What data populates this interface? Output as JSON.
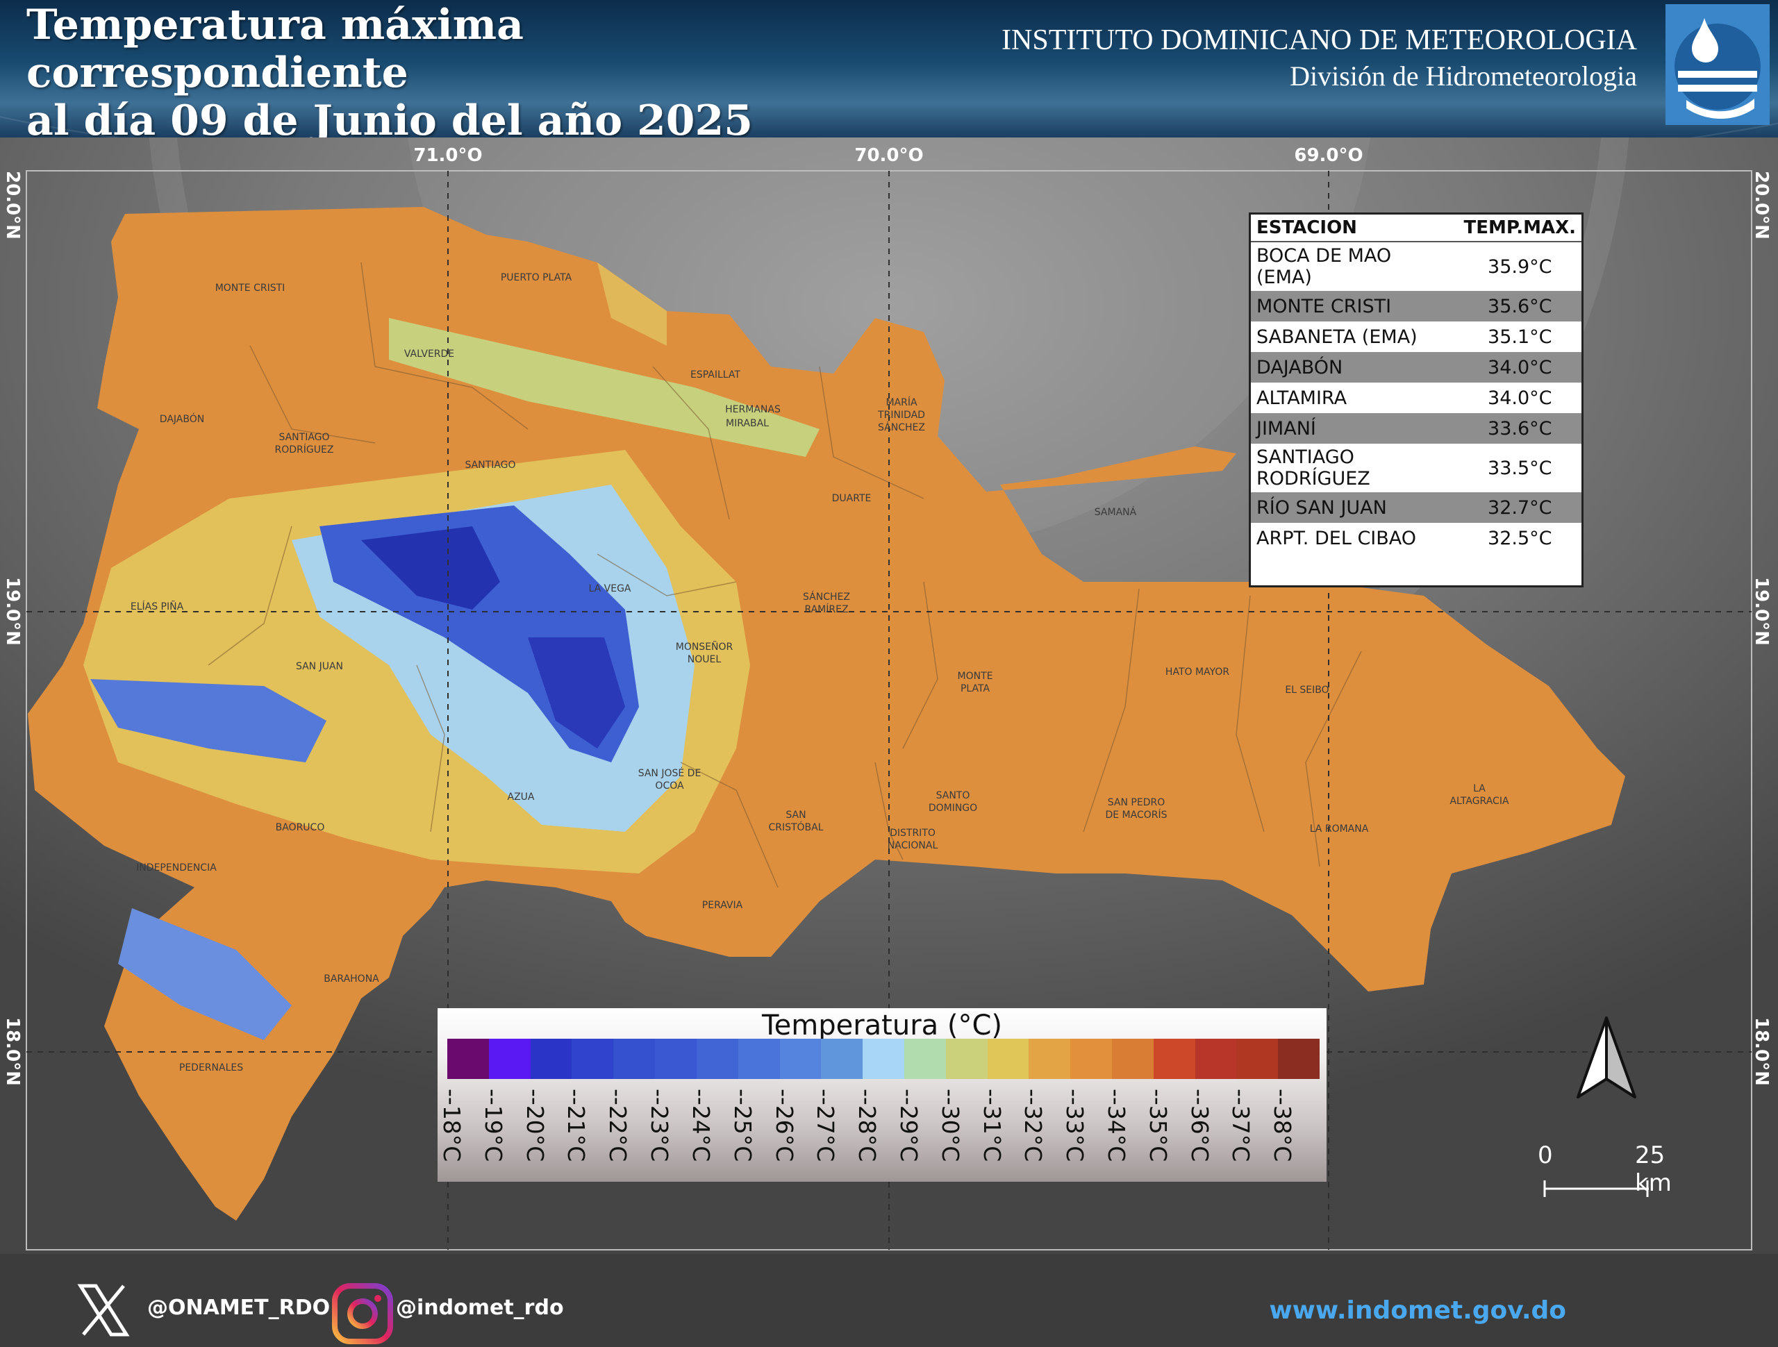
{
  "title": {
    "line1": "Temperatura máxima correspondiente",
    "line2": "al día 09 de Junio del año 2025"
  },
  "institute": {
    "name": "INSTITUTO DOMINICANO DE METEOROLOGIA",
    "division": "División de Hidrometeorologia"
  },
  "axes": {
    "lon_labels": [
      "71.0°O",
      "70.0°O",
      "69.0°O"
    ],
    "lat_labels": [
      "20.0°N",
      "19.0°N",
      "18.0°N"
    ]
  },
  "provinces": [
    "MONTE CRISTI",
    "PUERTO PLATA",
    "VALVERDE",
    "ESPAILLAT",
    "HERMANAS",
    "MIRABAL",
    "MARÍA",
    "TRINIDAD",
    "SÁNCHEZ",
    "DAJABÓN",
    "SANTIAGO",
    "RODRÍGUEZ",
    "SANTIAGO",
    "DUARTE",
    "SAMANÁ",
    "ELÍAS PIÑA",
    "LA VEGA",
    "SÁNCHEZ",
    "RAMÍREZ",
    "MONSEÑOR",
    "NOUEL",
    "SAN JUAN",
    "MONTE",
    "PLATA",
    "HATO MAYOR",
    "EL SEIBO",
    "SAN JOSÉ DE",
    "OCOA",
    "AZUA",
    "SANTO",
    "DOMINGO",
    "SAN PEDRO",
    "DE MACORÍS",
    "LA",
    "ALTAGRACIA",
    "BAORUCO",
    "SAN",
    "CRISTÓBAL",
    "DISTRITO",
    "NACIONAL",
    "LA ROMANA",
    "INDEPENDENCIA",
    "PERAVIA",
    "BARAHONA",
    "PEDERNALES"
  ],
  "stations": {
    "header": {
      "station": "ESTACION",
      "temp": "TEMP.MAX."
    },
    "rows": [
      {
        "name": "BOCA DE MAO (EMA)",
        "temp": "35.9°C"
      },
      {
        "name": "MONTE CRISTI",
        "temp": "35.6°C"
      },
      {
        "name": "SABANETA (EMA)",
        "temp": "35.1°C"
      },
      {
        "name": "DAJABÓN",
        "temp": "34.0°C"
      },
      {
        "name": "ALTAMIRA",
        "temp": "34.0°C"
      },
      {
        "name": "JIMANÍ",
        "temp": "33.6°C"
      },
      {
        "name": "SANTIAGO RODRÍGUEZ",
        "temp": "33.5°C"
      },
      {
        "name": "RÍO SAN JUAN",
        "temp": "32.7°C"
      },
      {
        "name": "ARPT. DEL CIBAO",
        "temp": "32.5°C"
      }
    ]
  },
  "legend": {
    "title": "Temperatura (°C)",
    "labels": [
      "--18°C",
      "--19°C",
      "--20°C",
      "--21°C",
      "--22°C",
      "--23°C",
      "--24°C",
      "--25°C",
      "--26°C",
      "--27°C",
      "--28°C",
      "--29°C",
      "--30°C",
      "--31°C",
      "--32°C",
      "--33°C",
      "--34°C",
      "--35°C",
      "--36°C",
      "--37°C",
      "--38°C"
    ],
    "colors": [
      "#6a0a6e",
      "#5a19f2",
      "#2a35c8",
      "#2f43cc",
      "#3651cf",
      "#3a58d2",
      "#4265d6",
      "#4b74db",
      "#5584de",
      "#6096dc",
      "#a8d6f6",
      "#b1dcae",
      "#cbd07a",
      "#e0c559",
      "#e3a445",
      "#e2903c",
      "#d97c34",
      "#cd4828",
      "#b8352a",
      "#b03722",
      "#8c2d22"
    ]
  },
  "scale": {
    "zero": "0",
    "distance": "25 km"
  },
  "social": {
    "x": "@ONAMET_RDO",
    "instagram": "@indomet_rdo",
    "website": "www.indomet.gov.do"
  },
  "icons": [
    "x-logo-icon",
    "instagram-icon",
    "north-arrow-icon",
    "indomet-logo-icon"
  ]
}
